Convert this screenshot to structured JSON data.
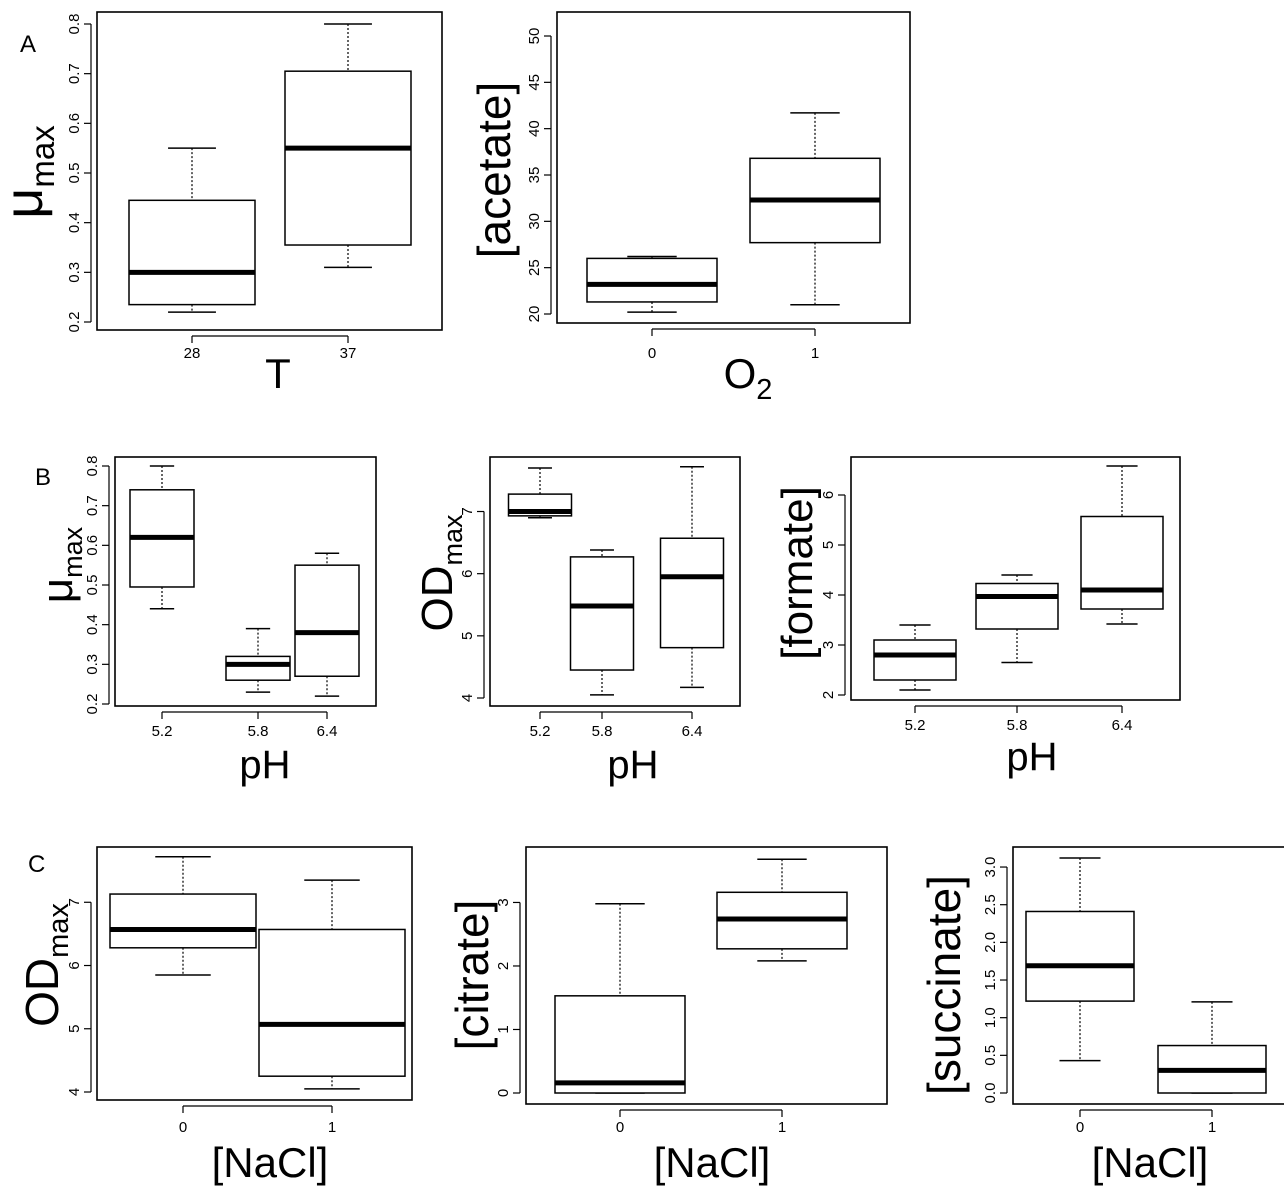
{
  "panel_letters": [
    "A",
    "B",
    "C"
  ],
  "chart_data": [
    {
      "type": "boxplot",
      "panel": "A",
      "ylabel": {
        "base": "μ",
        "sub": "max"
      },
      "xlabel": {
        "base": "T",
        "sub": ""
      },
      "categories": [
        "28",
        "37"
      ],
      "ylim": [
        0.2,
        0.8
      ],
      "yticks": [
        "0.2",
        "0.3",
        "0.4",
        "0.5",
        "0.6",
        "0.7",
        "0.8"
      ],
      "boxes": [
        {
          "min": 0.22,
          "q1": 0.235,
          "median": 0.3,
          "q3": 0.445,
          "max": 0.55
        },
        {
          "min": 0.31,
          "q1": 0.355,
          "median": 0.55,
          "q3": 0.705,
          "max": 0.8
        }
      ]
    },
    {
      "type": "boxplot",
      "panel": "A",
      "ylabel": {
        "base": "[acetate]",
        "sub": ""
      },
      "xlabel": {
        "base": "O",
        "sub": "2"
      },
      "categories": [
        "0",
        "1"
      ],
      "ylim": [
        20,
        50
      ],
      "yticks": [
        "20",
        "25",
        "30",
        "35",
        "40",
        "45",
        "50"
      ],
      "boxes": [
        {
          "min": 20.2,
          "q1": 21.3,
          "median": 23.2,
          "q3": 26.0,
          "max": 26.2
        },
        {
          "min": 21.0,
          "q1": 27.7,
          "median": 32.3,
          "q3": 36.8,
          "max": 41.7
        }
      ]
    },
    {
      "type": "boxplot",
      "panel": "B",
      "ylabel": {
        "base": "μ",
        "sub": "max"
      },
      "xlabel": {
        "base": "pH",
        "sub": ""
      },
      "categories": [
        "5.2",
        "5.8",
        "6.4"
      ],
      "ylim": [
        0.2,
        0.8
      ],
      "yticks": [
        "0.2",
        "0.3",
        "0.4",
        "0.5",
        "0.6",
        "0.7",
        "0.8"
      ],
      "boxes": [
        {
          "min": 0.44,
          "q1": 0.495,
          "median": 0.62,
          "q3": 0.74,
          "max": 0.8
        },
        {
          "min": 0.23,
          "q1": 0.26,
          "median": 0.3,
          "q3": 0.32,
          "max": 0.39
        },
        {
          "min": 0.22,
          "q1": 0.27,
          "median": 0.38,
          "q3": 0.55,
          "max": 0.58
        }
      ]
    },
    {
      "type": "boxplot",
      "panel": "B",
      "ylabel": {
        "base": "OD",
        "sub": "max"
      },
      "xlabel": {
        "base": "pH",
        "sub": ""
      },
      "categories": [
        "5.2",
        "5.8",
        "6.4"
      ],
      "ylim": [
        4,
        7.7
      ],
      "yticks": [
        "4",
        "5",
        "6",
        "7"
      ],
      "boxes": [
        {
          "min": 6.9,
          "q1": 6.93,
          "median": 7.0,
          "q3": 7.28,
          "max": 7.7
        },
        {
          "min": 4.05,
          "q1": 4.45,
          "median": 5.48,
          "q3": 6.27,
          "max": 6.38
        },
        {
          "min": 4.17,
          "q1": 4.81,
          "median": 5.95,
          "q3": 6.57,
          "max": 7.72
        }
      ]
    },
    {
      "type": "boxplot",
      "panel": "B",
      "ylabel": {
        "base": "[formate]",
        "sub": ""
      },
      "xlabel": {
        "base": "pH",
        "sub": ""
      },
      "categories": [
        "5.2",
        "5.8",
        "6.4"
      ],
      "ylim": [
        2,
        6.6
      ],
      "yticks": [
        "2",
        "3",
        "4",
        "5",
        "6"
      ],
      "boxes": [
        {
          "min": 2.1,
          "q1": 2.3,
          "median": 2.8,
          "q3": 3.1,
          "max": 3.4
        },
        {
          "min": 2.65,
          "q1": 3.32,
          "median": 3.97,
          "q3": 4.23,
          "max": 4.4
        },
        {
          "min": 3.42,
          "q1": 3.72,
          "median": 4.1,
          "q3": 5.57,
          "max": 6.58
        }
      ]
    },
    {
      "type": "boxplot",
      "panel": "C",
      "ylabel": {
        "base": "OD",
        "sub": "max"
      },
      "xlabel": {
        "base": "[NaCl]",
        "sub": ""
      },
      "categories": [
        "0",
        "1"
      ],
      "ylim": [
        4,
        7.7
      ],
      "yticks": [
        "4",
        "5",
        "6",
        "7"
      ],
      "boxes": [
        {
          "min": 5.85,
          "q1": 6.28,
          "median": 6.57,
          "q3": 7.13,
          "max": 7.72
        },
        {
          "min": 4.05,
          "q1": 4.25,
          "median": 5.07,
          "q3": 6.57,
          "max": 7.35
        }
      ]
    },
    {
      "type": "boxplot",
      "panel": "C",
      "ylabel": {
        "base": "[citrate]",
        "sub": ""
      },
      "xlabel": {
        "base": "[NaCl]",
        "sub": ""
      },
      "categories": [
        "0",
        "1"
      ],
      "ylim": [
        0,
        3.7
      ],
      "yticks": [
        "0",
        "1",
        "2",
        "3"
      ],
      "boxes": [
        {
          "min": 0.0,
          "q1": 0.0,
          "median": 0.16,
          "q3": 1.53,
          "max": 2.98
        },
        {
          "min": 2.08,
          "q1": 2.27,
          "median": 2.74,
          "q3": 3.16,
          "max": 3.68
        }
      ]
    },
    {
      "type": "boxplot",
      "panel": "C",
      "ylabel": {
        "base": "[succinate]",
        "sub": ""
      },
      "xlabel": {
        "base": "[NaCl]",
        "sub": ""
      },
      "categories": [
        "0",
        "1"
      ],
      "ylim": [
        0,
        3.12
      ],
      "yticks": [
        "0.0",
        "0.5",
        "1.0",
        "1.5",
        "2.0",
        "2.5",
        "3.0"
      ],
      "boxes": [
        {
          "min": 0.43,
          "q1": 1.22,
          "median": 1.69,
          "q3": 2.41,
          "max": 3.12
        },
        {
          "min": 0.0,
          "q1": 0.0,
          "median": 0.3,
          "q3": 0.63,
          "max": 1.21
        }
      ]
    }
  ]
}
